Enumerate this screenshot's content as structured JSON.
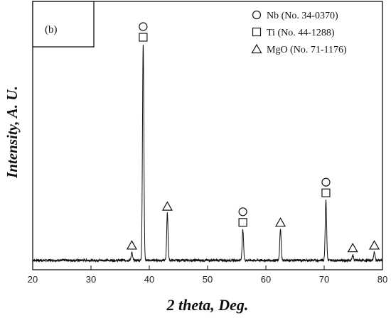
{
  "chart_data": {
    "type": "line",
    "panel_label": "(b)",
    "xlabel": "2 theta, Deg.",
    "ylabel": "Intensity, A. U.",
    "xlim": [
      20,
      80
    ],
    "xticks": [
      20,
      30,
      40,
      50,
      60,
      70,
      80
    ],
    "ylim": [
      0,
      100
    ],
    "grid": false,
    "legend_position": "top-right",
    "series": [
      {
        "color": "#111111",
        "baseline": 3.5,
        "peaks": [
          {
            "x": 37.0,
            "y": 6.5,
            "width": 0.12
          },
          {
            "x": 38.95,
            "y": 84.0,
            "width": 0.12
          },
          {
            "x": 43.1,
            "y": 21.0,
            "width": 0.12
          },
          {
            "x": 56.05,
            "y": 15.0,
            "width": 0.12
          },
          {
            "x": 62.5,
            "y": 15.0,
            "width": 0.12
          },
          {
            "x": 70.3,
            "y": 26.0,
            "width": 0.12
          },
          {
            "x": 74.9,
            "y": 5.5,
            "width": 0.12
          },
          {
            "x": 78.6,
            "y": 6.5,
            "width": 0.12
          }
        ]
      }
    ],
    "legend": [
      {
        "marker": "circle",
        "label": "Nb (No. 34-0370)"
      },
      {
        "marker": "square",
        "label": "Ti (No. 44-1288)"
      },
      {
        "marker": "triangle",
        "label": "MgO (No. 71-1176)"
      }
    ],
    "annotations": [
      {
        "x": 37.0,
        "y": 6.5,
        "markers": [
          "triangle"
        ]
      },
      {
        "x": 38.95,
        "y": 84.0,
        "markers": [
          "square",
          "circle"
        ]
      },
      {
        "x": 43.1,
        "y": 21.0,
        "markers": [
          "triangle"
        ]
      },
      {
        "x": 56.05,
        "y": 15.0,
        "markers": [
          "square",
          "circle"
        ]
      },
      {
        "x": 62.5,
        "y": 15.0,
        "markers": [
          "triangle"
        ]
      },
      {
        "x": 70.3,
        "y": 26.0,
        "markers": [
          "square",
          "circle"
        ]
      },
      {
        "x": 74.9,
        "y": 5.5,
        "markers": [
          "triangle"
        ]
      },
      {
        "x": 78.6,
        "y": 6.5,
        "markers": [
          "triangle"
        ]
      }
    ]
  }
}
